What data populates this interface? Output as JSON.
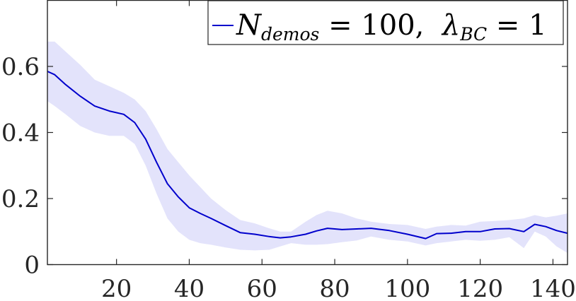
{
  "chart_data": {
    "type": "line",
    "title": "",
    "xlabel": "",
    "ylabel": "",
    "xlim": [
      1,
      144
    ],
    "ylim": [
      0,
      0.8
    ],
    "xticks": [
      20,
      40,
      60,
      80,
      100,
      120,
      140
    ],
    "xtick_labels": [
      "20",
      "40",
      "60",
      "80",
      "100",
      "120",
      "140"
    ],
    "yticks": [
      0,
      0.2,
      0.4,
      0.6
    ],
    "ytick_labels": [
      "0",
      "0.2",
      "0.4",
      "0.6"
    ],
    "grid": false,
    "legend_placement": "top-right",
    "series": [
      {
        "legend": {
          "symbol": "N",
          "subscript": "demos",
          "eq1": " = 100,  ",
          "symbol2": "λ",
          "subscript2": "BC",
          "eq2": " = 1"
        },
        "color": "#0000cc",
        "band_color": "#e3e3fb",
        "x": [
          1,
          3,
          6,
          10,
          14,
          18,
          22,
          25,
          28,
          31,
          34,
          37,
          40,
          43,
          46,
          50,
          54,
          58,
          62,
          65,
          68,
          72,
          75,
          78,
          82,
          86,
          90,
          95,
          100,
          105,
          108,
          112,
          116,
          120,
          124,
          128,
          132,
          135,
          138,
          141,
          144
        ],
        "mean": [
          0.585,
          0.575,
          0.545,
          0.51,
          0.48,
          0.465,
          0.455,
          0.43,
          0.38,
          0.31,
          0.245,
          0.205,
          0.172,
          0.155,
          0.14,
          0.118,
          0.097,
          0.092,
          0.085,
          0.081,
          0.084,
          0.092,
          0.102,
          0.11,
          0.106,
          0.108,
          0.11,
          0.103,
          0.092,
          0.079,
          0.094,
          0.095,
          0.1,
          0.1,
          0.108,
          0.109,
          0.1,
          0.122,
          0.115,
          0.103,
          0.095
        ],
        "upper": [
          0.675,
          0.675,
          0.645,
          0.605,
          0.56,
          0.54,
          0.52,
          0.5,
          0.465,
          0.41,
          0.35,
          0.31,
          0.27,
          0.235,
          0.2,
          0.165,
          0.135,
          0.125,
          0.11,
          0.1,
          0.1,
          0.13,
          0.15,
          0.163,
          0.155,
          0.14,
          0.13,
          0.123,
          0.12,
          0.108,
          0.115,
          0.12,
          0.118,
          0.13,
          0.132,
          0.135,
          0.14,
          0.15,
          0.143,
          0.148,
          0.155
        ],
        "lower": [
          0.495,
          0.48,
          0.455,
          0.42,
          0.4,
          0.39,
          0.39,
          0.365,
          0.3,
          0.215,
          0.14,
          0.1,
          0.075,
          0.065,
          0.06,
          0.052,
          0.045,
          0.043,
          0.045,
          0.055,
          0.065,
          0.06,
          0.06,
          0.062,
          0.068,
          0.073,
          0.085,
          0.075,
          0.07,
          0.058,
          0.065,
          0.07,
          0.075,
          0.072,
          0.075,
          0.083,
          0.05,
          0.1,
          0.085,
          0.055,
          0.035
        ]
      }
    ]
  }
}
